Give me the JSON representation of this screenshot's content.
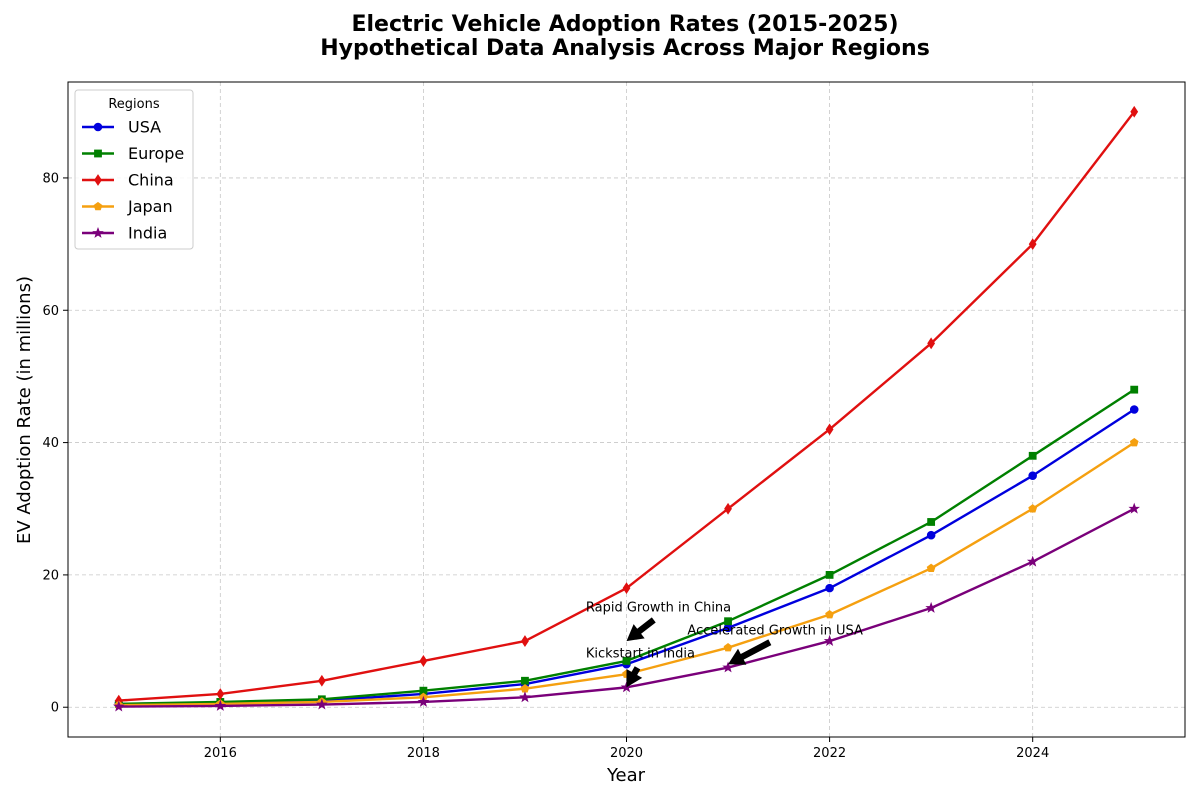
{
  "chart_data": {
    "type": "line",
    "title": "Electric Vehicle Adoption Rates (2015-2025)",
    "subtitle": "Hypothetical Data Analysis Across Major Regions",
    "xlabel": "Year",
    "ylabel": "EV Adoption Rate (in millions)",
    "xlim": [
      2014.5,
      2025.5
    ],
    "ylim": [
      -4.5,
      94.5
    ],
    "xticks": [
      2016,
      2018,
      2020,
      2022,
      2024
    ],
    "yticks": [
      0,
      20,
      40,
      60,
      80
    ],
    "grid": true,
    "legend": {
      "title": "Regions",
      "placement": "top-left"
    },
    "x": [
      2015,
      2016,
      2017,
      2018,
      2019,
      2020,
      2021,
      2022,
      2023,
      2024,
      2025
    ],
    "series": [
      {
        "name": "USA",
        "color": "#0000dd",
        "marker": "circle",
        "values": [
          0.5,
          0.7,
          1.0,
          2.0,
          3.5,
          6.5,
          12,
          18,
          26,
          35,
          45
        ]
      },
      {
        "name": "Europe",
        "color": "#008000",
        "marker": "square",
        "values": [
          0.5,
          0.8,
          1.2,
          2.5,
          4.0,
          7.0,
          13,
          20,
          28,
          38,
          48
        ]
      },
      {
        "name": "China",
        "color": "#e01010",
        "marker": "diamond",
        "values": [
          1.0,
          2.0,
          4.0,
          7.0,
          10,
          18,
          30,
          42,
          55,
          70,
          90
        ]
      },
      {
        "name": "Japan",
        "color": "#f5a010",
        "marker": "pentagon",
        "values": [
          0.3,
          0.5,
          0.8,
          1.5,
          2.8,
          5.0,
          9,
          14,
          21,
          30,
          40
        ]
      },
      {
        "name": "India",
        "color": "#7a007a",
        "marker": "star",
        "values": [
          0.1,
          0.2,
          0.4,
          0.8,
          1.5,
          3.0,
          6,
          10,
          15,
          22,
          30
        ]
      }
    ],
    "annotations": [
      {
        "text": "Rapid Growth in China",
        "text_at": [
          2019.6,
          14.5
        ],
        "point": [
          2020,
          10
        ]
      },
      {
        "text": "Accelerated Growth in USA",
        "text_at": [
          2020.6,
          11
        ],
        "point": [
          2021,
          6.5
        ]
      },
      {
        "text": "Kickstart in India",
        "text_at": [
          2019.6,
          7.5
        ],
        "point": [
          2020,
          3
        ]
      }
    ]
  }
}
